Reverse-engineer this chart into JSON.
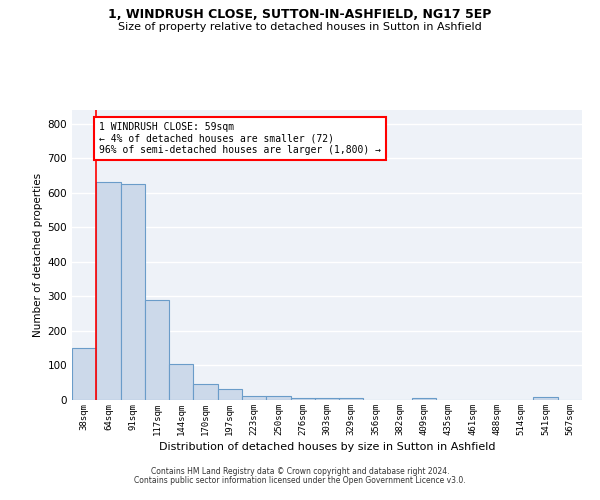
{
  "title1": "1, WINDRUSH CLOSE, SUTTON-IN-ASHFIELD, NG17 5EP",
  "title2": "Size of property relative to detached houses in Sutton in Ashfield",
  "xlabel": "Distribution of detached houses by size in Sutton in Ashfield",
  "ylabel": "Number of detached properties",
  "categories": [
    "38sqm",
    "64sqm",
    "91sqm",
    "117sqm",
    "144sqm",
    "170sqm",
    "197sqm",
    "223sqm",
    "250sqm",
    "276sqm",
    "303sqm",
    "329sqm",
    "356sqm",
    "382sqm",
    "409sqm",
    "435sqm",
    "461sqm",
    "488sqm",
    "514sqm",
    "541sqm",
    "567sqm"
  ],
  "values": [
    150,
    630,
    625,
    290,
    105,
    46,
    32,
    11,
    11,
    5,
    5,
    5,
    0,
    0,
    7,
    0,
    0,
    0,
    0,
    10,
    0
  ],
  "bar_color": "#ccd9ea",
  "bar_edge_color": "#6a9cc9",
  "bar_edge_width": 0.8,
  "red_line_x": 0.5,
  "annotation_text": "1 WINDRUSH CLOSE: 59sqm\n← 4% of detached houses are smaller (72)\n96% of semi-detached houses are larger (1,800) →",
  "annotation_box_color": "white",
  "annotation_box_edge_color": "red",
  "ylim": [
    0,
    840
  ],
  "yticks": [
    0,
    100,
    200,
    300,
    400,
    500,
    600,
    700,
    800
  ],
  "bg_color": "#eef2f8",
  "grid_color": "white",
  "footer_line1": "Contains HM Land Registry data © Crown copyright and database right 2024.",
  "footer_line2": "Contains public sector information licensed under the Open Government Licence v3.0."
}
